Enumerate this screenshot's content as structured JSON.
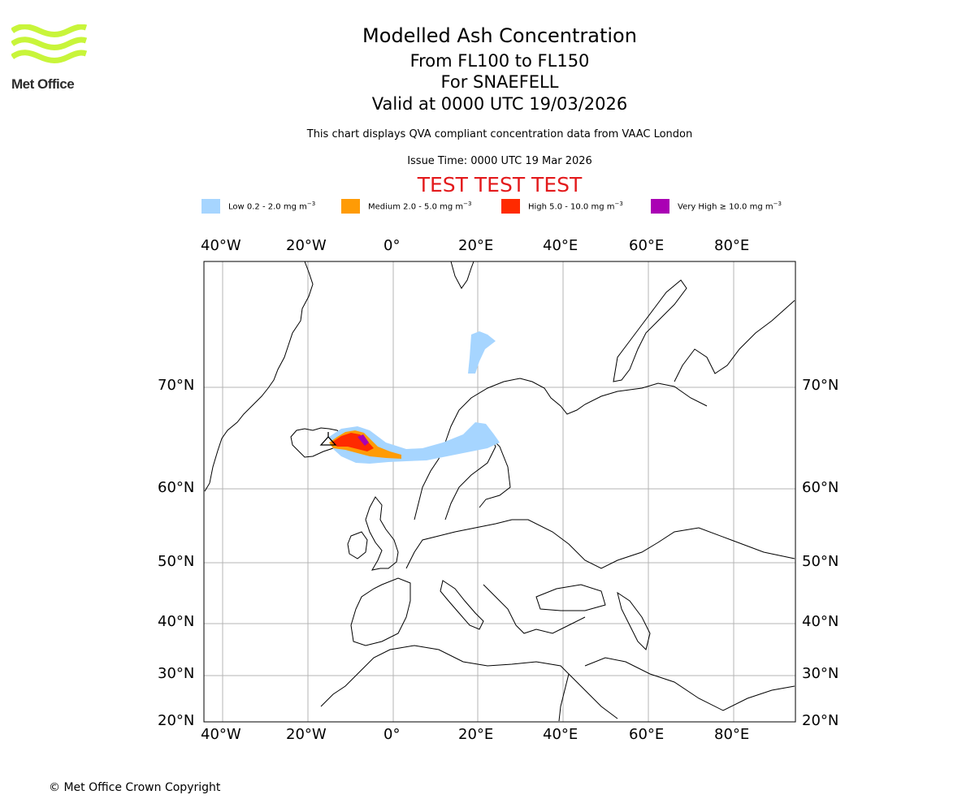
{
  "logo": {
    "text": "Met Office",
    "wave_color": "#c8f53a"
  },
  "header": {
    "title": "Modelled Ash Concentration",
    "level_range": "From FL100 to FL150",
    "volcano": "For SNAEFELL",
    "valid_time": "Valid at 0000 UTC 19/03/2026",
    "description": "This chart displays QVA compliant concentration data from VAAC London",
    "issue_time": "Issue Time: 0000 UTC 19 Mar 2026",
    "test_banner": "TEST TEST TEST"
  },
  "legend": [
    {
      "label": "Low 0.2 - 2.0 mg m",
      "color": "#a6d5ff"
    },
    {
      "label": "Medium 2.0 - 5.0 mg m",
      "color": "#ff9b05"
    },
    {
      "label": "High 5.0 - 10.0 mg m",
      "color": "#ff2a00"
    },
    {
      "label": "Very High  ≥  10.0 mg m",
      "color": "#aa00b4"
    }
  ],
  "legend_unit_exponent": "−3",
  "map": {
    "longitude_ticks": [
      "40°W",
      "20°W",
      "0°",
      "20°E",
      "40°E",
      "60°E",
      "80°E"
    ],
    "latitude_ticks": [
      "70°N",
      "60°N",
      "50°N",
      "40°N",
      "30°N",
      "20°N"
    ],
    "grid_color": "#b4b4b4"
  },
  "footer": {
    "copyright": "© Met Office Crown Copyright"
  }
}
